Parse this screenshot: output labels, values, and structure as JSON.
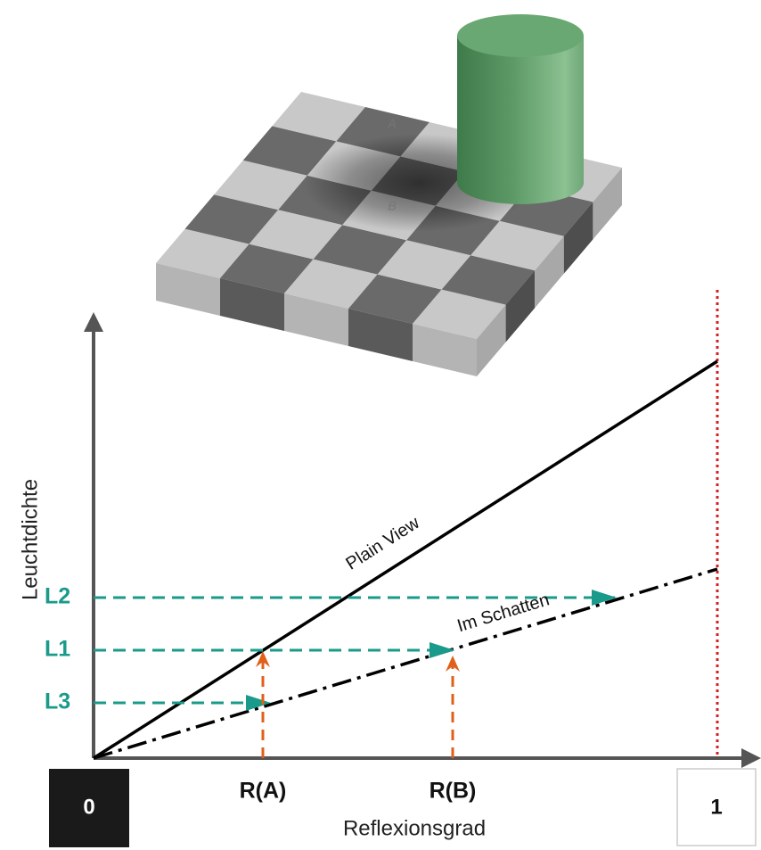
{
  "board": {
    "labels": [
      "A",
      "B"
    ]
  },
  "plot": {
    "y_axis_label": "Leuchtdichte",
    "x_axis_label": "Reflexionsgrad",
    "lines": [
      "Plain View",
      "Im Schatten"
    ],
    "levels": [
      "L2",
      "L1",
      "L3"
    ],
    "reflectances": [
      "R(A)",
      "R(B)"
    ],
    "scale_min": "0",
    "scale_max": "1"
  }
}
